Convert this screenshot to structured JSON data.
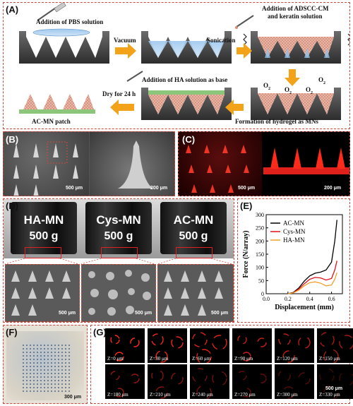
{
  "panelA": {
    "label": "(A)",
    "step1": "Addition of PBS solution",
    "step2": "Vacuum",
    "step3": "Sonication",
    "step4a": "Addition of ADSCC-CM",
    "step4b": "and keratin solution",
    "step5": "Addition of HA solution as base",
    "step6": "Dry for 24 h",
    "step7": "Formation of hydrogel as MNs",
    "step8": "AC-MN patch",
    "o2": "O",
    "o2sub": "2"
  },
  "panelB": {
    "label": "(B)",
    "scale1": "500 μm",
    "scale2": "200 μm"
  },
  "panelC": {
    "label": "(C)",
    "scale1": "500 μm",
    "scale2": "200 μm"
  },
  "panelD": {
    "label": "(D)",
    "weights": [
      {
        "name": "HA-MN",
        "mass": "500 g"
      },
      {
        "name": "Cys-MN",
        "mass": "500 g"
      },
      {
        "name": "AC-MN",
        "mass": "500 g"
      }
    ],
    "scale": "500 μm"
  },
  "panelE": {
    "label": "(E)"
  },
  "panelF": {
    "label": "(F)",
    "scale": "300 μm"
  },
  "panelG": {
    "label": "(G)",
    "depths": [
      "Z=0 μm",
      "Z=30 μm",
      "Z=60 μm",
      "Z=90 μm",
      "Z=120 μm",
      "Z=150 μm",
      "Z=180 μm",
      "Z=210 μm",
      "Z=240 μm",
      "Z=270 μm",
      "Z=300 μm",
      "Z=330 μm"
    ],
    "scale": "500 μm"
  },
  "chart_data": {
    "type": "line",
    "xlabel": "Displacement (mm)",
    "ylabel": "Force (N/array)",
    "xlim": [
      0,
      0.7
    ],
    "ylim": [
      0,
      300
    ],
    "xticks": [
      "0.0",
      "0.2",
      "0.4",
      "0.6"
    ],
    "yticks": [
      "0",
      "50",
      "100",
      "150",
      "200",
      "250",
      "300"
    ],
    "legend_position": "top-left",
    "series": [
      {
        "name": "AC-MN",
        "color": "#000000",
        "x": [
          0.2,
          0.25,
          0.3,
          0.35,
          0.4,
          0.45,
          0.5,
          0.55,
          0.6,
          0.63,
          0.65
        ],
        "y": [
          0,
          5,
          22,
          48,
          68,
          78,
          82,
          90,
          120,
          200,
          280
        ]
      },
      {
        "name": "Cys-MN",
        "color": "#e0121a",
        "x": [
          0.2,
          0.25,
          0.3,
          0.35,
          0.4,
          0.45,
          0.5,
          0.55,
          0.6,
          0.63,
          0.65
        ],
        "y": [
          0,
          4,
          18,
          38,
          55,
          62,
          60,
          52,
          58,
          90,
          125
        ]
      },
      {
        "name": "HA-MN",
        "color": "#f0a030",
        "x": [
          0.2,
          0.25,
          0.3,
          0.35,
          0.4,
          0.45,
          0.5,
          0.55,
          0.6,
          0.63,
          0.65
        ],
        "y": [
          0,
          3,
          14,
          30,
          42,
          45,
          40,
          30,
          33,
          55,
          80
        ]
      }
    ]
  }
}
